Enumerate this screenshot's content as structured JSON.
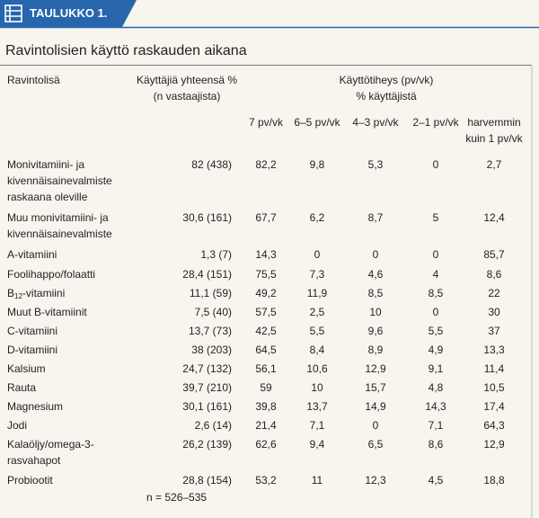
{
  "header": {
    "label": "TAULUKKO 1."
  },
  "title": "Ravintolisien käyttö raskauden aikana",
  "table": {
    "columns": {
      "name": "Ravintolisä",
      "total": [
        "Käyttäjiä yhteensä %",
        "(n vastaajista)"
      ],
      "frequency": [
        "Käyttötiheys (pv/vk)",
        "% käyttäjistä"
      ],
      "frequency_columns": [
        [
          "7 pv/vk"
        ],
        [
          "6–5 pv/vk"
        ],
        [
          "4–3 pv/vk"
        ],
        [
          "2–1 pv/vk"
        ],
        [
          "harvemmin",
          "kuin 1 pv/vk"
        ]
      ]
    },
    "rows": [
      {
        "name": [
          "Monivitamiini- ja",
          "kivennäisainevalmiste",
          "raskaana oleville"
        ],
        "total": "82 (438)",
        "frequency": [
          "82,2",
          "9,8",
          "5,3",
          "0",
          "2,7"
        ]
      },
      {
        "name": [
          "Muu monivitamiini- ja",
          "kivennäisainevalmiste"
        ],
        "total": "30,6 (161)",
        "frequency": [
          "67,7",
          "6,2",
          "8,7",
          "5",
          "12,4"
        ]
      },
      {
        "name": [
          "A-vitamiini"
        ],
        "total": "1,3 (7)",
        "frequency": [
          "14,3",
          "0",
          "0",
          "0",
          "85,7"
        ]
      },
      {
        "name": [
          "Foolihappo/folaatti"
        ],
        "total": "28,4 (151)",
        "frequency": [
          "75,5",
          "7,3",
          "4,6",
          "4",
          "8,6"
        ]
      },
      {
        "name": [
          {
            "text": "B",
            "sub": "12",
            "after": "-vitamiini"
          }
        ],
        "total": "11,1 (59)",
        "frequency": [
          "49,2",
          "11,9",
          "8,5",
          "8,5",
          "22"
        ]
      },
      {
        "name": [
          "Muut B-vitamiinit"
        ],
        "total": "7,5 (40)",
        "frequency": [
          "57,5",
          "2,5",
          "10",
          "0",
          "30"
        ]
      },
      {
        "name": [
          "C-vitamiini"
        ],
        "total": "13,7 (73)",
        "frequency": [
          "42,5",
          "5,5",
          "9,6",
          "5,5",
          "37"
        ]
      },
      {
        "name": [
          "D-vitamiini"
        ],
        "total": "38 (203)",
        "frequency": [
          "64,5",
          "8,4",
          "8,9",
          "4,9",
          "13,3"
        ]
      },
      {
        "name": [
          "Kalsium"
        ],
        "total": "24,7 (132)",
        "frequency": [
          "56,1",
          "10,6",
          "12,9",
          "9,1",
          "11,4"
        ]
      },
      {
        "name": [
          "Rauta"
        ],
        "total": "39,7 (210)",
        "frequency": [
          "59",
          "10",
          "15,7",
          "4,8",
          "10,5"
        ]
      },
      {
        "name": [
          "Magnesium"
        ],
        "total": "30,1 (161)",
        "frequency": [
          "39,8",
          "13,7",
          "14,9",
          "14,3",
          "17,4"
        ]
      },
      {
        "name": [
          "Jodi"
        ],
        "total": "2,6 (14)",
        "frequency": [
          "21,4",
          "7,1",
          "0",
          "7,1",
          "64,3"
        ]
      },
      {
        "name": [
          "Kalaöljy/omega-3-",
          "rasvahapot"
        ],
        "total": "26,2 (139)",
        "frequency": [
          "62,6",
          "9,4",
          "6,5",
          "8,6",
          "12,9"
        ]
      },
      {
        "name": [
          "Probiootit"
        ],
        "total": "28,8 (154)",
        "frequency": [
          "53,2",
          "11",
          "12,3",
          "4,5",
          "18,8"
        ]
      }
    ],
    "note": "n = 526–535"
  }
}
